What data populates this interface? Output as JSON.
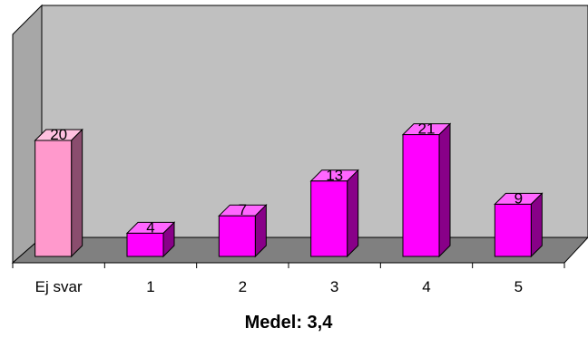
{
  "chart_data": {
    "type": "bar",
    "style": "3d-column",
    "categories": [
      "Ej svar",
      "1",
      "2",
      "3",
      "4",
      "5"
    ],
    "values": [
      20,
      4,
      7,
      13,
      21,
      9
    ],
    "data_labels": [
      "20",
      "4",
      "7",
      "13",
      "21",
      "9"
    ],
    "title": "",
    "xlabel": "Medel: 3,4",
    "ylabel": "",
    "ylim": [
      0,
      30
    ],
    "grid": false,
    "legend": "none"
  },
  "colors": {
    "back_wall": "#c0c0c0",
    "side_wall": "#a7a7a7",
    "floor": "#808080",
    "first_bar_front": "#ff99cc",
    "first_bar_top": "#ffc1e0",
    "first_bar_side": "#8a4d6e",
    "bar_front": "#ff00ff",
    "bar_top": "#ff66ff",
    "bar_side": "#880088"
  }
}
